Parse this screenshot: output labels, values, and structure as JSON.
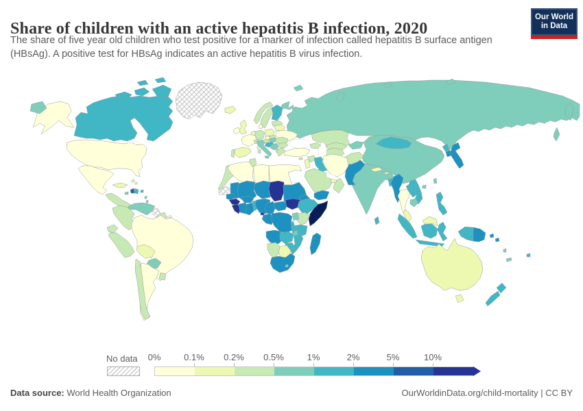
{
  "header": {
    "title": "Share of children with an active hepatitis B infection, 2020",
    "subtitle_line1": "The share of five year old children who test positive for a marker of infection called hepatitis B surface antigen",
    "subtitle_line2": "(HBsAg). A positive test for HBsAg indicates an active hepatitis B virus infection.",
    "logo_line1": "Our World",
    "logo_line2": "in Data",
    "logo_bg": "#12305a",
    "logo_stripe": "#c7241d"
  },
  "legend": {
    "no_data_label": "No data",
    "labels": [
      "0%",
      "0.1%",
      "0.2%",
      "0.5%",
      "1%",
      "2%",
      "5%",
      "10%"
    ],
    "colors": [
      "#ffffd9",
      "#edf8b1",
      "#c7e9b4",
      "#7fcdbb",
      "#41b6c4",
      "#1d91c0",
      "#225ea8",
      "#253494"
    ],
    "arrow_color": "#253494"
  },
  "footer": {
    "source_label": "Data source:",
    "source_value": " World Health Organization",
    "right_text": "OurWorldinData.org/child-mortality | CC BY"
  },
  "chart_data": {
    "type": "choropleth-map",
    "title": "Share of children with an active hepatitis B infection, 2020",
    "unit": "% of five-year-olds HBsAg positive",
    "bins": [
      "0%",
      "0.1%",
      "0.2%",
      "0.5%",
      "1%",
      "2%",
      "5%",
      "10%"
    ],
    "legend_position": "bottom",
    "palette": {
      "0": "#ffffd9",
      "0.1": "#edf8b1",
      "0.2": "#c7e9b4",
      "0.5": "#7fcdbb",
      "1": "#41b6c4",
      "2": "#1d91c0",
      "5": "#225ea8",
      "10": "#253494",
      "max": "#081d58",
      "nodata": "hatch"
    },
    "regions": {
      "canada": "1",
      "alaska": "0",
      "usa": "0",
      "greenland": "nodata",
      "chukotka-fragment": "0.5",
      "mexico": "0",
      "central-america": "0.2",
      "cuba": "0.1",
      "haiti": "5",
      "dominican-republic": "1",
      "jamaica": "0.5",
      "puerto-rico": "1",
      "bahamas": "0.1",
      "lesser-antilles": "0.5",
      "trinidad": "1",
      "venezuela": "0.5",
      "colombia": "0.2",
      "guyana": "nodata",
      "suriname": "0.2",
      "french-guiana": "nodata",
      "ecuador": "0.2",
      "peru": "0.2",
      "brazil": "0",
      "bolivia": "0.1",
      "paraguay": "0.5",
      "chile": "0.2",
      "argentina": "0",
      "uruguay": "0.2",
      "iceland": "0.1",
      "ireland": "0",
      "uk": "0.1",
      "norway": "0.2",
      "sweden": "0.2",
      "finland": "1",
      "baltics": "0.2",
      "denmark": "0",
      "netherlands-belgium": "0.1",
      "germany": "0.2",
      "poland": "0.1",
      "belarus": "0.1",
      "ukraine": "0",
      "france": "0",
      "spain": "0.1",
      "portugal": "0.2",
      "switzerland": "0.2",
      "czech": "0",
      "austria": "0.2",
      "slovakia": "0.2",
      "hungary": "0.5",
      "slovenia-croatia": "1",
      "serbia-bosnia": "0.5",
      "albania": "0.2",
      "romania": "0.2",
      "bulgaria": "0.2",
      "greece": "0.2",
      "italy": "0.5",
      "sicily": "0.5",
      "sardinia": "0.2",
      "corsica": "0",
      "russia": "0.5",
      "kamchatka": "0.5",
      "sakhalin": "0.5",
      "novaya-zemlya": "0.5",
      "severnaya-zemlya": "0.5",
      "new-siberian-islands": "0.5",
      "svalbard": "0.5",
      "kazakhstan": "0.2",
      "uzbekistan": "0.2",
      "turkmenistan": "0.2",
      "kyrgyz-tajik": "0.5",
      "caucasus": "0.2",
      "turkey": "0",
      "cyprus": "0.2",
      "syria": "0.2",
      "israel-jordan": "0.1",
      "iraq": "1",
      "iran": "0",
      "saudi-arabia": "0.2",
      "yemen": "2",
      "oman": "0.2",
      "uae-qatar": "0.1",
      "afghanistan": "0.2",
      "pakistan": "2",
      "india": "0.5",
      "nepal": "0.1",
      "bhutan": "0.2",
      "bangladesh": "1",
      "sri-lanka": "1",
      "china": "0.5",
      "mongolia": "1",
      "north-korea": "1",
      "south-korea": "2",
      "japan": "2",
      "taiwan": "0.5",
      "hainan": "0.5",
      "myanmar": "2",
      "thailand": "0",
      "laos": "1",
      "vietnam": "1",
      "cambodia": "0.5",
      "malaysia-peninsula": "0.1",
      "malaysia-borneo": "0.1",
      "sumatra": "1",
      "borneo-indonesia": "1",
      "java": "1",
      "sulawesi": "1",
      "west-papua": "1",
      "papua-new-guinea": "2",
      "philippines": "1",
      "solomon-islands": "2",
      "vanuatu": "0.5",
      "new-caledonia": "0.5",
      "fiji": "1",
      "australia": "0.1",
      "tasmania": "0.1",
      "new-zealand-north": "1",
      "new-zealand-south": "1",
      "morocco": "0.2",
      "western-sahara": "nodata",
      "algeria": "0",
      "tunisia": "0.2",
      "libya": "0",
      "egypt": "0",
      "mauritania": "2",
      "mali": "2",
      "niger": "2",
      "chad": "10",
      "sudan": "2",
      "eritrea": "2",
      "djibouti": "1",
      "ethiopia": "1",
      "somalia": "max",
      "senegal": "2",
      "guinea": "10",
      "sierra-leone-liberia": "10",
      "cote-divoire": "2",
      "burkina-faso": "2",
      "ghana": "2",
      "togo-benin": "1",
      "nigeria": "2",
      "cameroon": "2",
      "central-african-republic": "2",
      "south-sudan": "10",
      "equatorial-guinea": "10",
      "gabon-congo": "2",
      "drc": "2",
      "uganda": "0.5",
      "kenya": "0.2",
      "rwanda-burundi": "1",
      "tanzania": "1",
      "angola": "2",
      "zambia": "1",
      "malawi": "0.5",
      "mozambique": "1",
      "zimbabwe": "1",
      "botswana": "0.1",
      "namibia": "0.2",
      "south-africa": "2",
      "lesotho": "0.5",
      "madagascar": "2"
    }
  }
}
